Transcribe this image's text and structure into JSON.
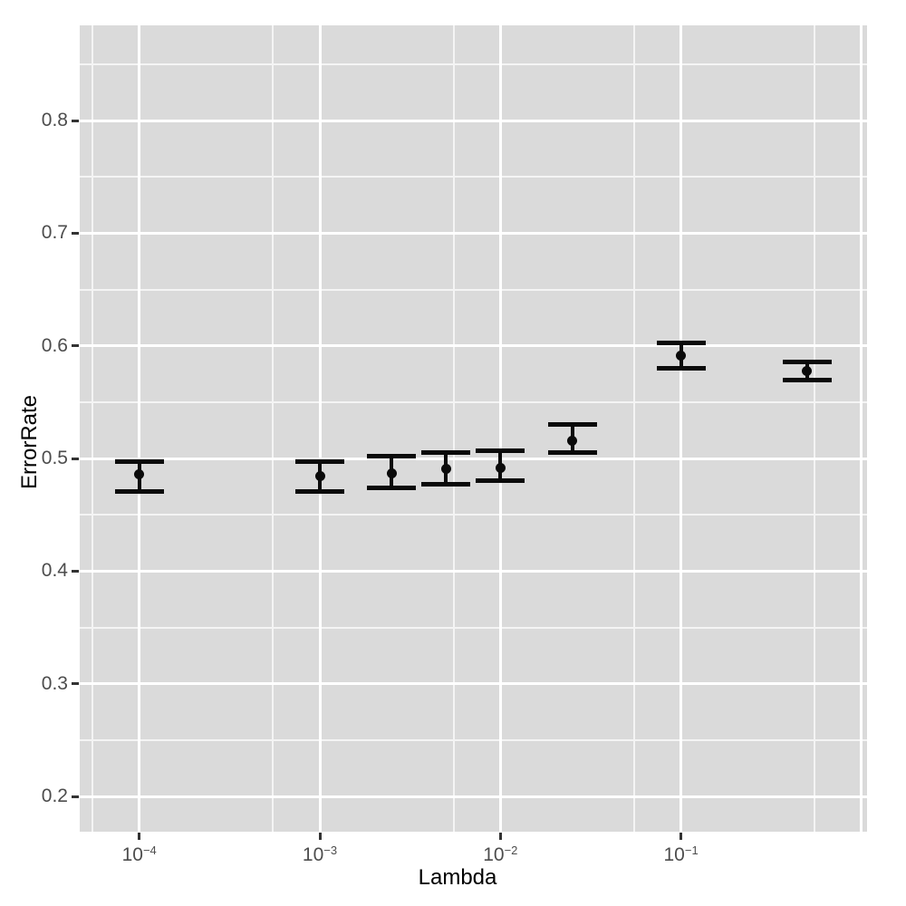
{
  "chart_data": {
    "type": "scatter",
    "subtype": "point-with-errorbars",
    "title": "",
    "xlabel": "Lambda",
    "ylabel": "ErrorRate",
    "legend": "none",
    "grid": "on",
    "x_axis": {
      "scale": "log10",
      "lim_log10": [
        -4.3297,
        0.0305
      ],
      "ticks": [
        {
          "value": 0.0001,
          "base": "10",
          "exp": "−4"
        },
        {
          "value": 0.001,
          "base": "10",
          "exp": "−3"
        },
        {
          "value": 0.01,
          "base": "10",
          "exp": "−2"
        },
        {
          "value": 0.1,
          "base": "10",
          "exp": "−1"
        }
      ],
      "unlabeled_grid": [
        1.0
      ],
      "minor": [
        5.5e-05,
        0.00055,
        0.0055,
        0.055,
        0.55
      ]
    },
    "y_axis": {
      "scale": "linear",
      "lim": [
        0.1686,
        0.8845
      ],
      "ticks": [
        {
          "value": 0.2,
          "label": "0.2"
        },
        {
          "value": 0.3,
          "label": "0.3"
        },
        {
          "value": 0.4,
          "label": "0.4"
        },
        {
          "value": 0.5,
          "label": "0.5"
        },
        {
          "value": 0.6,
          "label": "0.6"
        },
        {
          "value": 0.7,
          "label": "0.7"
        },
        {
          "value": 0.8,
          "label": "0.8"
        }
      ],
      "minor": [
        0.25,
        0.35,
        0.45,
        0.55,
        0.65,
        0.75,
        0.85
      ]
    },
    "series": [
      {
        "name": "ErrorRate",
        "points": [
          {
            "x": 0.0001,
            "y": 0.486,
            "ymin": 0.471,
            "ymax": 0.497
          },
          {
            "x": 0.001,
            "y": 0.484,
            "ymin": 0.471,
            "ymax": 0.497
          },
          {
            "x": 0.0025,
            "y": 0.487,
            "ymin": 0.474,
            "ymax": 0.502
          },
          {
            "x": 0.005,
            "y": 0.491,
            "ymin": 0.477,
            "ymax": 0.505
          },
          {
            "x": 0.01,
            "y": 0.492,
            "ymin": 0.48,
            "ymax": 0.507
          },
          {
            "x": 0.025,
            "y": 0.516,
            "ymin": 0.505,
            "ymax": 0.53
          },
          {
            "x": 0.1,
            "y": 0.591,
            "ymin": 0.58,
            "ymax": 0.603
          },
          {
            "x": 0.5,
            "y": 0.578,
            "ymin": 0.57,
            "ymax": 0.586
          }
        ]
      }
    ],
    "style": {
      "panel_bg": "#DADADA",
      "grid_major": "#FFFFFF",
      "grid_minor": "#F4F4F4",
      "point_color": "#0A0A0A",
      "tick_mark_color": "#333333",
      "tick_label_color": "#4D4D4D",
      "axis_title_color": "#000000"
    }
  }
}
